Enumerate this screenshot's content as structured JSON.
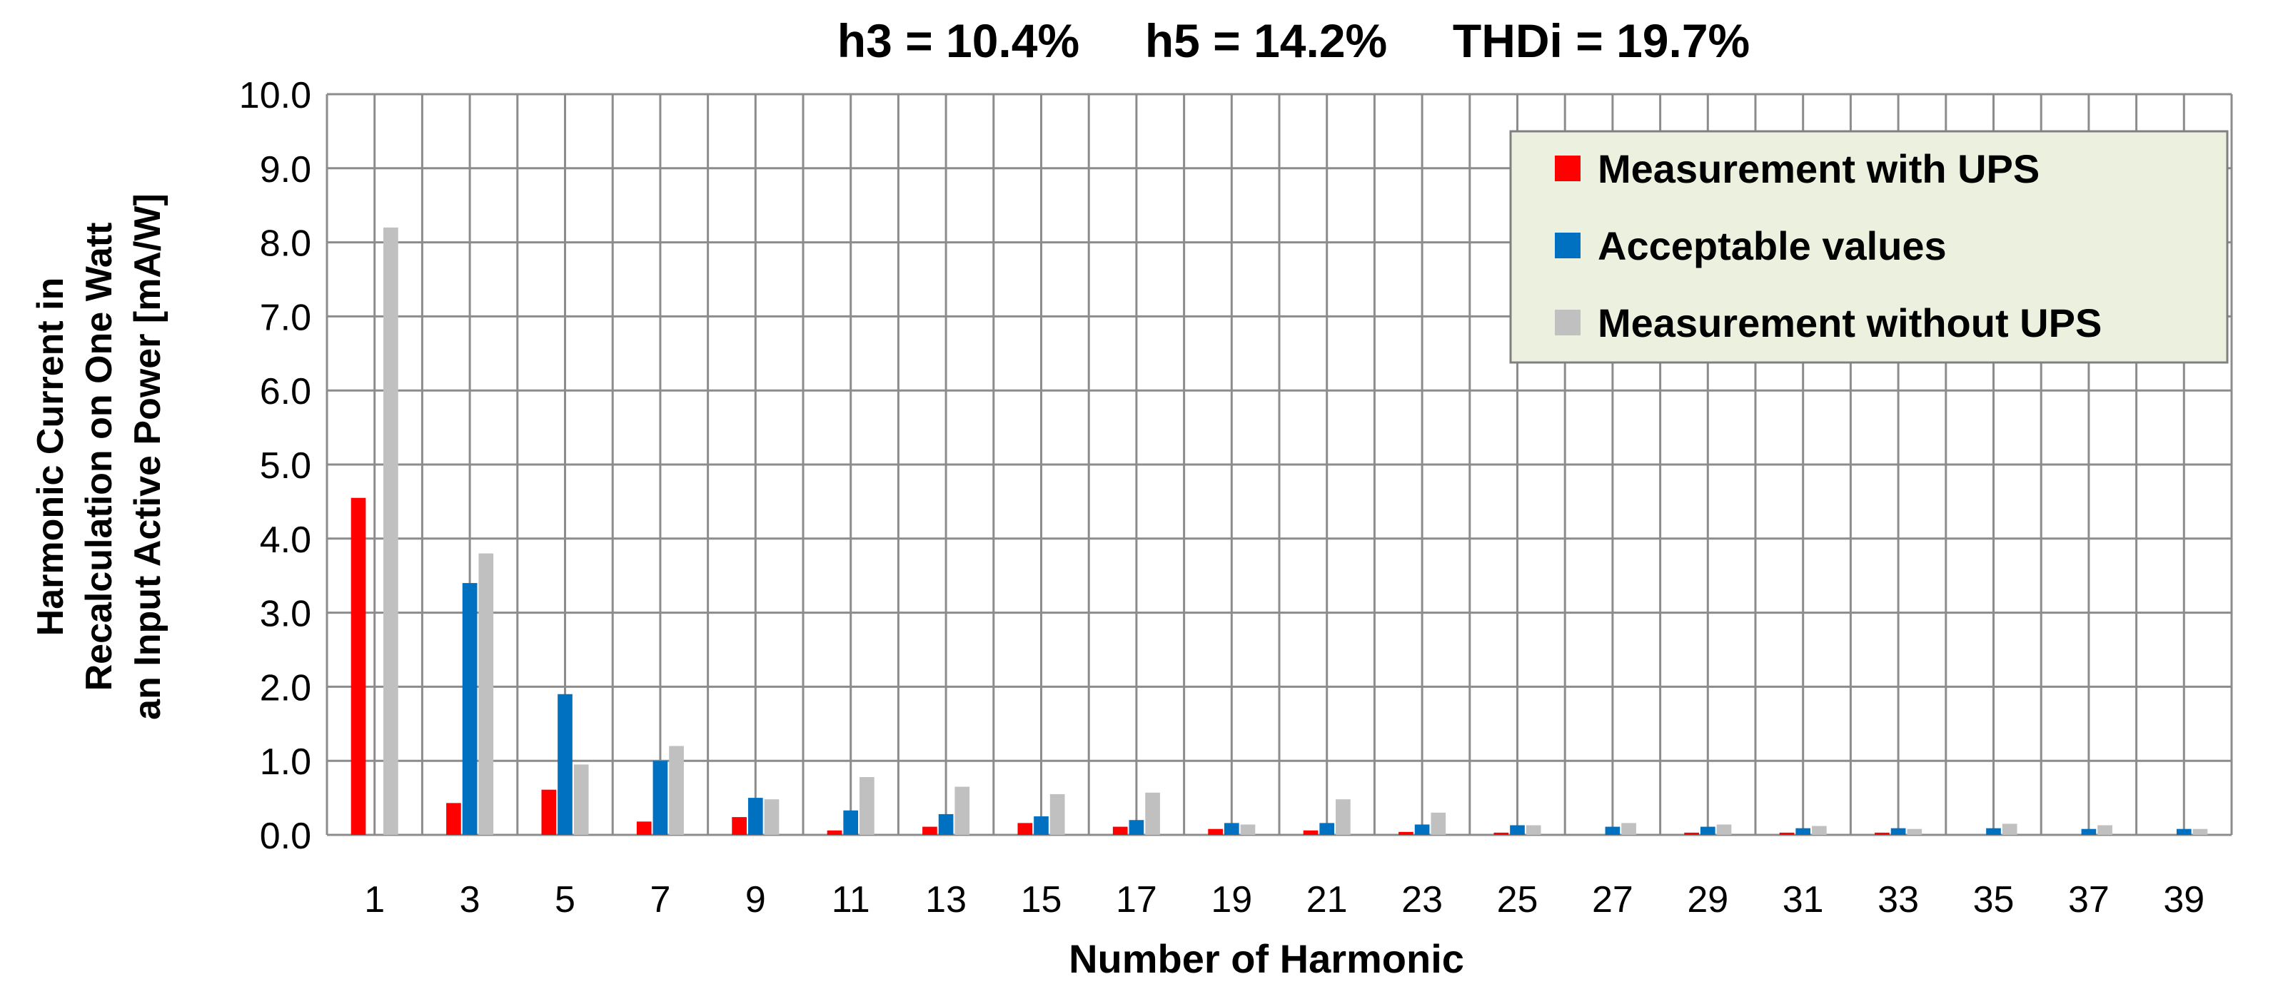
{
  "chart_data": {
    "type": "bar",
    "title": "h3 = 10.4%     h5 = 14.2%     THDi = 19.7%",
    "xlabel": "Number of Harmonic",
    "ylabel_lines": [
      "Harmonic Current in",
      "Recalculation on One Watt",
      "an Input Active Power [mA/W]"
    ],
    "ylim": [
      0,
      10
    ],
    "yticks": [
      "0.0",
      "1.0",
      "2.0",
      "3.0",
      "4.0",
      "5.0",
      "6.0",
      "7.0",
      "8.0",
      "9.0",
      "10.0"
    ],
    "grid": true,
    "legend_position": "top-right",
    "categories": [
      "1",
      "3",
      "5",
      "7",
      "9",
      "11",
      "13",
      "15",
      "17",
      "19",
      "21",
      "23",
      "25",
      "27",
      "29",
      "31",
      "33",
      "35",
      "37",
      "39"
    ],
    "series": [
      {
        "name": "Measurement with UPS",
        "color": "#ff0000",
        "values": [
          4.55,
          0.43,
          0.61,
          0.18,
          0.24,
          0.06,
          0.11,
          0.16,
          0.11,
          0.08,
          0.06,
          0.04,
          0.03,
          0.0,
          0.03,
          0.03,
          0.03,
          0.0,
          0.0,
          0.0
        ]
      },
      {
        "name": "Acceptable values",
        "color": "#0070c0",
        "values": [
          0.0,
          3.4,
          1.9,
          1.0,
          0.5,
          0.33,
          0.28,
          0.25,
          0.2,
          0.16,
          0.16,
          0.14,
          0.13,
          0.11,
          0.11,
          0.09,
          0.09,
          0.09,
          0.08,
          0.08
        ]
      },
      {
        "name": "Measurement without UPS",
        "color": "#c0c0c0",
        "values": [
          8.2,
          3.8,
          0.95,
          1.2,
          0.48,
          0.78,
          0.65,
          0.55,
          0.57,
          0.14,
          0.48,
          0.3,
          0.13,
          0.16,
          0.14,
          0.12,
          0.08,
          0.15,
          0.13,
          0.08
        ]
      }
    ]
  }
}
